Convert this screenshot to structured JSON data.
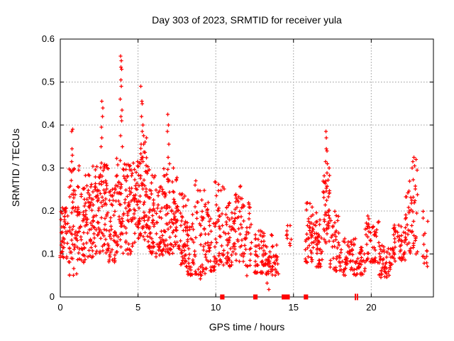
{
  "window": {
    "background": "#ffffff"
  },
  "chart_data": {
    "type": "scatter",
    "title": "Day 303 of 2023, SRMTID for receiver yula",
    "xlabel": "GPS time / hours",
    "ylabel": "SRMTID / TECUs",
    "xlim": [
      0,
      24
    ],
    "ylim": [
      0,
      0.6
    ],
    "xticks": [
      0,
      5,
      10,
      15,
      20
    ],
    "yticks": [
      "0",
      "0.1",
      "0.2",
      "0.3",
      "0.4",
      "0.5",
      "0.6"
    ],
    "ytick_values": [
      0,
      0.1,
      0.2,
      0.3,
      0.4,
      0.5,
      0.6
    ],
    "grid": true,
    "legend": "none",
    "marker": "plus",
    "marker_color": "#ff0000",
    "grid_color": "#999999",
    "axis_color": "#000000",
    "seed": 7,
    "band_segments_format": "[t_start_hours, t_end_hours, n_points, y_min_TECUs, y_max_TECUs, skew_power_toward_min]",
    "band_segments": [
      [
        0.0,
        0.5,
        48,
        0.09,
        0.21,
        1.1
      ],
      [
        0.5,
        1.05,
        50,
        0.05,
        0.3,
        1.5
      ],
      [
        1.05,
        1.6,
        52,
        0.08,
        0.26,
        1.3
      ],
      [
        1.6,
        2.1,
        50,
        0.09,
        0.3,
        1.4
      ],
      [
        2.1,
        2.6,
        55,
        0.1,
        0.31,
        1.1
      ],
      [
        2.6,
        3.1,
        50,
        0.1,
        0.32,
        1.3
      ],
      [
        3.1,
        3.6,
        45,
        0.08,
        0.26,
        1.2
      ],
      [
        3.6,
        4.15,
        52,
        0.1,
        0.33,
        1.2
      ],
      [
        4.15,
        4.7,
        52,
        0.1,
        0.31,
        1.2
      ],
      [
        4.7,
        5.15,
        48,
        0.12,
        0.33,
        1.1
      ],
      [
        5.15,
        5.65,
        52,
        0.13,
        0.36,
        1.2
      ],
      [
        5.65,
        6.15,
        48,
        0.1,
        0.3,
        1.3
      ],
      [
        6.15,
        6.65,
        45,
        0.09,
        0.26,
        1.3
      ],
      [
        6.65,
        7.15,
        48,
        0.1,
        0.3,
        1.2
      ],
      [
        7.15,
        7.65,
        45,
        0.1,
        0.28,
        1.3
      ],
      [
        7.65,
        8.15,
        42,
        0.07,
        0.24,
        1.4
      ],
      [
        8.15,
        8.75,
        45,
        0.05,
        0.23,
        1.3
      ],
      [
        8.75,
        9.35,
        42,
        0.05,
        0.25,
        1.4
      ],
      [
        9.35,
        9.95,
        40,
        0.06,
        0.22,
        1.4
      ],
      [
        9.95,
        10.6,
        45,
        0.07,
        0.27,
        1.3
      ],
      [
        10.6,
        11.1,
        40,
        0.07,
        0.22,
        1.4
      ],
      [
        11.1,
        11.7,
        45,
        0.08,
        0.27,
        1.4
      ],
      [
        11.7,
        12.3,
        35,
        0.07,
        0.22,
        1.5
      ],
      [
        12.5,
        13.1,
        45,
        0.055,
        0.16,
        1.3
      ],
      [
        13.1,
        13.65,
        35,
        0.05,
        0.15,
        1.3
      ],
      [
        13.65,
        14.05,
        22,
        0.05,
        0.13,
        1.2
      ],
      [
        14.55,
        14.85,
        9,
        0.11,
        0.17,
        1.0
      ],
      [
        15.75,
        16.35,
        48,
        0.08,
        0.22,
        1.4
      ],
      [
        16.35,
        16.9,
        40,
        0.07,
        0.2,
        1.4
      ],
      [
        16.9,
        17.35,
        48,
        0.12,
        0.31,
        1.1
      ],
      [
        17.35,
        18.0,
        40,
        0.06,
        0.2,
        1.5
      ],
      [
        18.0,
        19.0,
        55,
        0.05,
        0.14,
        1.2
      ],
      [
        19.0,
        19.6,
        35,
        0.05,
        0.12,
        1.2
      ],
      [
        19.6,
        20.5,
        48,
        0.08,
        0.19,
        1.3
      ],
      [
        20.5,
        21.4,
        55,
        0.045,
        0.12,
        1.1
      ],
      [
        21.4,
        22.2,
        45,
        0.08,
        0.17,
        1.2
      ],
      [
        22.2,
        23.0,
        50,
        0.1,
        0.28,
        1.2
      ],
      [
        23.3,
        23.65,
        15,
        0.07,
        0.2,
        1.2
      ]
    ],
    "outlier_points_format": "[t_hours, y_TECUs]",
    "outlier_points": [
      [
        0.72,
        0.315
      ],
      [
        0.78,
        0.33
      ],
      [
        0.75,
        0.345
      ],
      [
        0.73,
        0.385
      ],
      [
        0.79,
        0.39
      ],
      [
        1.18,
        0.295
      ],
      [
        1.22,
        0.305
      ],
      [
        2.62,
        0.35
      ],
      [
        2.68,
        0.37
      ],
      [
        2.65,
        0.395
      ],
      [
        2.71,
        0.42
      ],
      [
        2.66,
        0.455
      ],
      [
        2.73,
        0.44
      ],
      [
        3.88,
        0.56
      ],
      [
        3.93,
        0.55
      ],
      [
        3.9,
        0.535
      ],
      [
        3.95,
        0.53
      ],
      [
        3.89,
        0.505
      ],
      [
        3.92,
        0.49
      ],
      [
        3.85,
        0.46
      ],
      [
        3.97,
        0.435
      ],
      [
        3.91,
        0.42
      ],
      [
        3.94,
        0.41
      ],
      [
        3.87,
        0.375
      ],
      [
        3.99,
        0.35
      ],
      [
        5.18,
        0.49
      ],
      [
        5.25,
        0.455
      ],
      [
        5.28,
        0.45
      ],
      [
        5.22,
        0.42
      ],
      [
        5.31,
        0.4
      ],
      [
        5.26,
        0.385
      ],
      [
        5.35,
        0.375
      ],
      [
        5.2,
        0.355
      ],
      [
        5.45,
        0.36
      ],
      [
        5.55,
        0.37
      ],
      [
        6.92,
        0.425
      ],
      [
        6.95,
        0.4
      ],
      [
        6.9,
        0.385
      ],
      [
        6.98,
        0.355
      ],
      [
        6.93,
        0.325
      ],
      [
        7.02,
        0.31
      ],
      [
        7.28,
        0.3
      ],
      [
        8.68,
        0.26
      ],
      [
        8.72,
        0.27
      ],
      [
        17.08,
        0.385
      ],
      [
        17.12,
        0.37
      ],
      [
        17.1,
        0.345
      ],
      [
        17.15,
        0.34
      ],
      [
        17.06,
        0.315
      ],
      [
        17.18,
        0.31
      ],
      [
        22.62,
        0.3
      ],
      [
        22.68,
        0.315
      ],
      [
        22.74,
        0.325
      ],
      [
        22.8,
        0.305
      ],
      [
        22.88,
        0.32
      ],
      [
        22.95,
        0.295
      ],
      [
        13.42,
        0.017
      ],
      [
        13.3,
        0.032
      ],
      [
        12.0,
        0.05
      ],
      [
        9.0,
        0.042
      ],
      [
        21.0,
        0.046
      ]
    ],
    "axis_flag_squares_format": "[t_center_hours, half_width_hours] drawn as filled squares on y=0 axis",
    "axis_flag_squares": [
      [
        10.42,
        0.14
      ],
      [
        12.55,
        0.14
      ],
      [
        14.5,
        0.26
      ],
      [
        15.8,
        0.14
      ]
    ],
    "axis_flag_bars_format": "t_hours of thin vertical bars on y=0 axis",
    "axis_flag_bars": [
      18.98,
      19.11
    ]
  }
}
